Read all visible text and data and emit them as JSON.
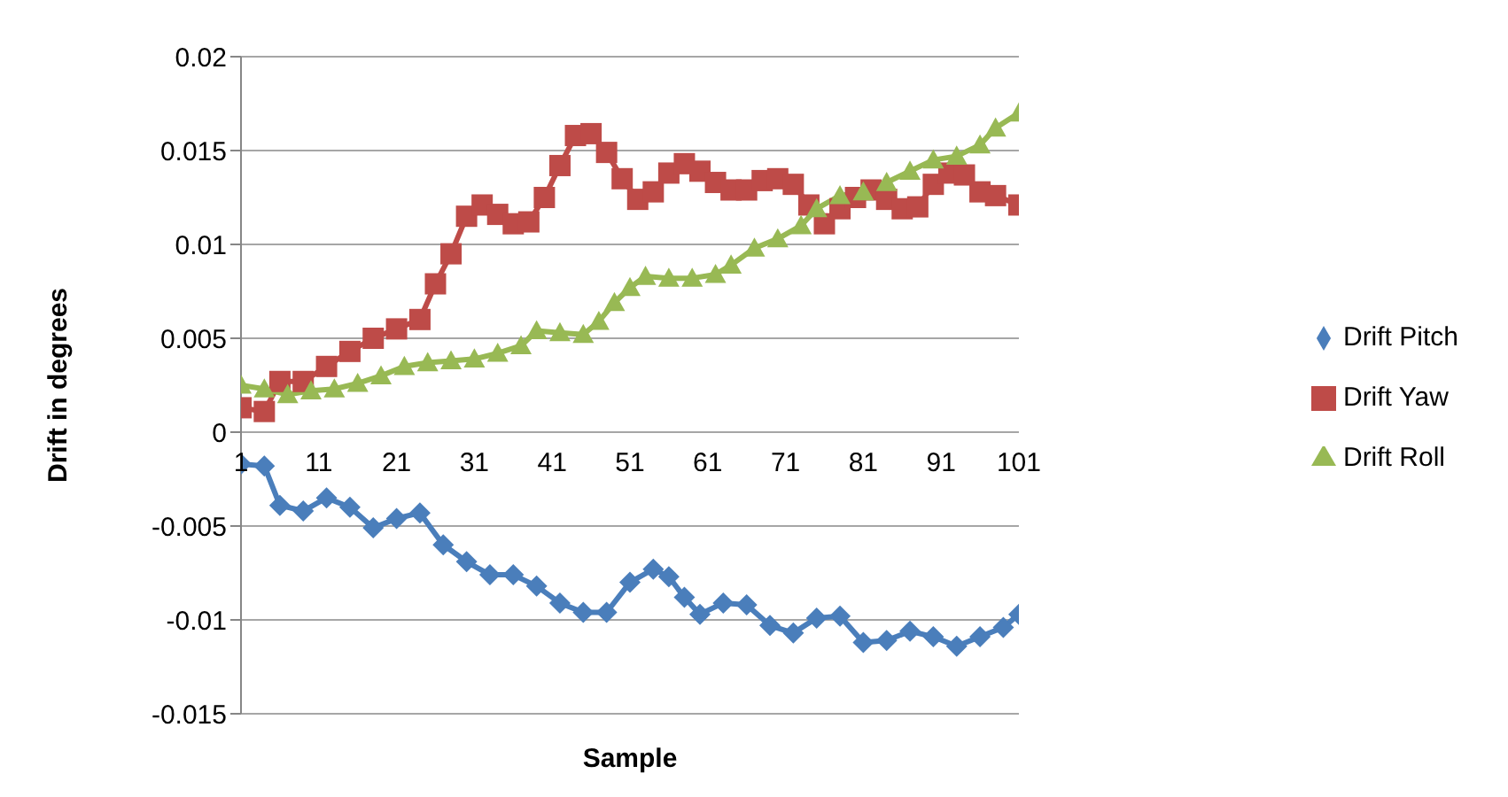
{
  "chart_data": {
    "type": "line",
    "xlabel": "Sample",
    "ylabel": "Drift in degrees",
    "xlim": [
      1,
      101
    ],
    "xticks": [
      1,
      11,
      21,
      31,
      41,
      51,
      61,
      71,
      81,
      91,
      101
    ],
    "ylim": [
      -0.015,
      0.02
    ],
    "yticks": [
      -0.015,
      -0.01,
      -0.005,
      0,
      0.005,
      0.01,
      0.015,
      0.02
    ],
    "grid": "y",
    "legend": "right",
    "line_style": "solid",
    "series": [
      {
        "name": "Drift Pitch",
        "color": "#4a7ebb",
        "marker": "diamond",
        "x": [
          1,
          4,
          6,
          9,
          12,
          15,
          18,
          21,
          24,
          27,
          30,
          33,
          36,
          39,
          42,
          45,
          48,
          51,
          54,
          56,
          58,
          60,
          63,
          66,
          69,
          72,
          75,
          78,
          81,
          84,
          87,
          90,
          93,
          96,
          99,
          101
        ],
        "values": [
          -0.0017,
          -0.0018,
          -0.0039,
          -0.0042,
          -0.0035,
          -0.004,
          -0.0051,
          -0.0046,
          -0.0043,
          -0.006,
          -0.0069,
          -0.0076,
          -0.0076,
          -0.0082,
          -0.0091,
          -0.0096,
          -0.0096,
          -0.008,
          -0.0073,
          -0.0077,
          -0.0088,
          -0.0097,
          -0.0091,
          -0.0092,
          -0.0103,
          -0.0107,
          -0.0099,
          -0.0098,
          -0.0112,
          -0.0111,
          -0.0106,
          -0.0109,
          -0.0114,
          -0.0109,
          -0.0104,
          -0.0097
        ]
      },
      {
        "name": "Drift Yaw",
        "color": "#be4b48",
        "marker": "square",
        "x": [
          1,
          4,
          6,
          9,
          12,
          15,
          18,
          21,
          24,
          26,
          28,
          30,
          32,
          34,
          36,
          38,
          40,
          42,
          44,
          46,
          48,
          50,
          52,
          54,
          56,
          58,
          60,
          62,
          64,
          66,
          68,
          70,
          72,
          74,
          76,
          78,
          80,
          82,
          84,
          86,
          88,
          90,
          92,
          94,
          96,
          98,
          101
        ],
        "values": [
          0.0013,
          0.0011,
          0.0027,
          0.0027,
          0.0035,
          0.0043,
          0.005,
          0.0055,
          0.006,
          0.0079,
          0.0095,
          0.0115,
          0.0121,
          0.0116,
          0.0111,
          0.0112,
          0.0125,
          0.0142,
          0.0158,
          0.0159,
          0.0149,
          0.0135,
          0.0124,
          0.0128,
          0.0138,
          0.0143,
          0.0139,
          0.0133,
          0.0129,
          0.0129,
          0.0134,
          0.0135,
          0.0132,
          0.0121,
          0.0111,
          0.0119,
          0.0125,
          0.0129,
          0.0124,
          0.0119,
          0.012,
          0.0132,
          0.0138,
          0.0137,
          0.0128,
          0.0126,
          0.0121
        ]
      },
      {
        "name": "Drift Roll",
        "color": "#98b954",
        "marker": "triangle",
        "x": [
          1,
          4,
          7,
          10,
          13,
          16,
          19,
          22,
          25,
          28,
          31,
          34,
          37,
          39,
          42,
          45,
          47,
          49,
          51,
          53,
          56,
          59,
          62,
          64,
          67,
          70,
          73,
          75,
          78,
          81,
          84,
          87,
          90,
          93,
          96,
          98,
          101
        ],
        "values": [
          0.0025,
          0.0023,
          0.002,
          0.0022,
          0.0023,
          0.0026,
          0.003,
          0.0035,
          0.0037,
          0.0038,
          0.0039,
          0.0042,
          0.0046,
          0.0054,
          0.0053,
          0.0052,
          0.0059,
          0.0069,
          0.0077,
          0.0083,
          0.0082,
          0.0082,
          0.0084,
          0.0089,
          0.0098,
          0.0103,
          0.011,
          0.0119,
          0.0126,
          0.0128,
          0.0133,
          0.0139,
          0.0145,
          0.0147,
          0.0153,
          0.0162,
          0.017
        ]
      }
    ]
  }
}
